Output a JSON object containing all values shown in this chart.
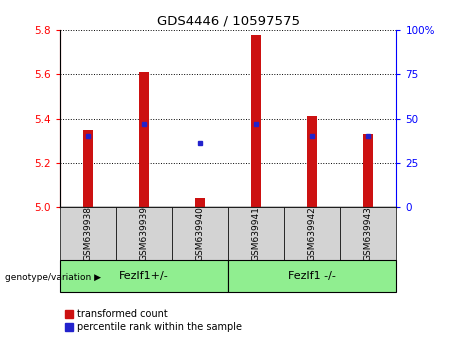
{
  "title": "GDS4446 / 10597575",
  "samples": [
    "GSM639938",
    "GSM639939",
    "GSM639940",
    "GSM639941",
    "GSM639942",
    "GSM639943"
  ],
  "red_values": [
    5.35,
    5.61,
    5.04,
    5.78,
    5.41,
    5.33
  ],
  "blue_pct": [
    40,
    47,
    36,
    47,
    40,
    40
  ],
  "ylim_left": [
    5.0,
    5.8
  ],
  "ylim_right": [
    0,
    100
  ],
  "yticks_left": [
    5.0,
    5.2,
    5.4,
    5.6,
    5.8
  ],
  "yticks_right": [
    0,
    25,
    50,
    75,
    100
  ],
  "ytick_labels_right": [
    "0",
    "25",
    "50",
    "75",
    "100%"
  ],
  "bar_color": "#cc1111",
  "marker_color": "#2222cc",
  "baseline": 5.0,
  "group1_label": "Fezlf1+/-",
  "group2_label": "Fezlf1 -/-",
  "group1_indices": [
    0,
    1,
    2
  ],
  "group2_indices": [
    3,
    4,
    5
  ],
  "group_bg_color": "#90ee90",
  "tick_area_color": "#d3d3d3",
  "legend_red_label": "transformed count",
  "legend_blue_label": "percentile rank within the sample",
  "bar_width": 0.18
}
